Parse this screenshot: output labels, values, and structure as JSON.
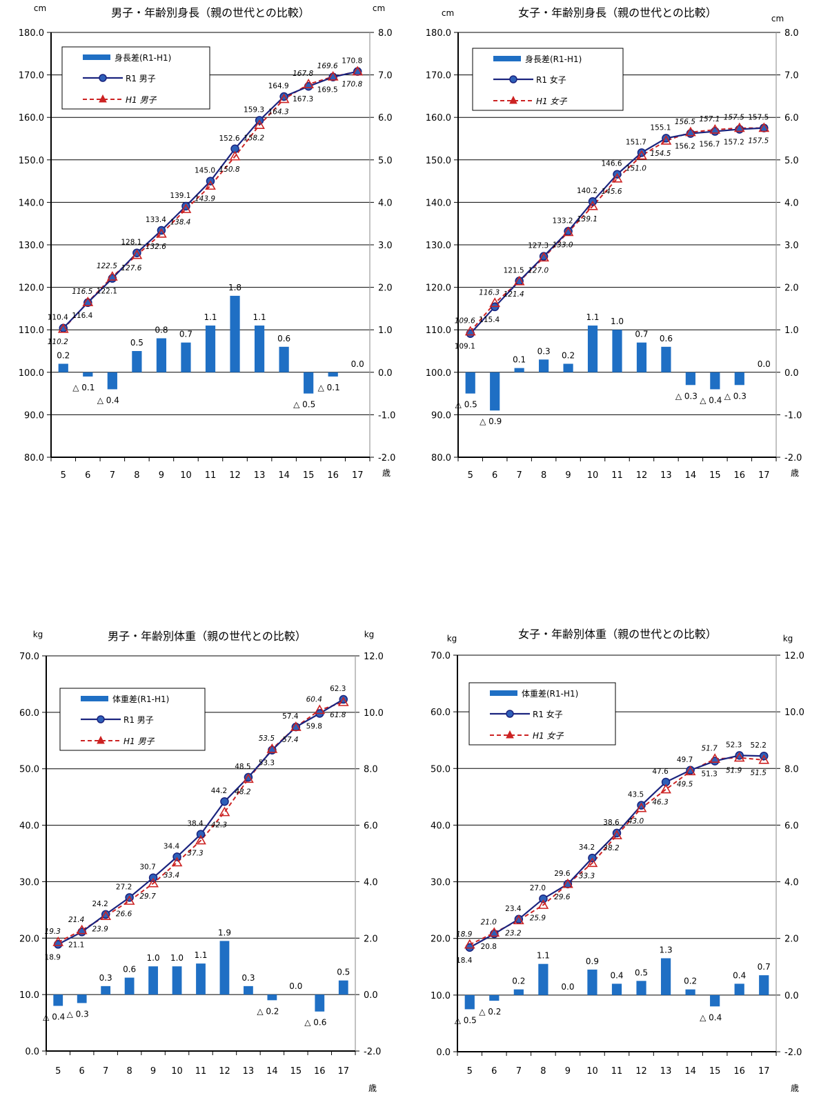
{
  "colors": {
    "bar": "#1f6fc4",
    "r1_line": "#1a237e",
    "r1_marker": "#2e5fb8",
    "h1_line": "#cc2222",
    "grid": "#000000",
    "axis_right": "#999999"
  },
  "chart_data": [
    {
      "type": "bar",
      "title": "男子・年齢別身長（親の世代との比較）",
      "unit_left": "cm",
      "unit_right": "cm",
      "xunit": "歳",
      "categories": [
        "5",
        "6",
        "7",
        "8",
        "9",
        "10",
        "11",
        "12",
        "13",
        "14",
        "15",
        "16",
        "17"
      ],
      "ylim": [
        80,
        180
      ],
      "yticks": [
        "80.0",
        "90.0",
        "100.0",
        "110.0",
        "120.0",
        "130.0",
        "140.0",
        "150.0",
        "160.0",
        "170.0",
        "180.0"
      ],
      "y2lim": [
        -2,
        8
      ],
      "y2ticks": [
        "-2.0",
        "-1.0",
        "0.0",
        "1.0",
        "2.0",
        "3.0",
        "4.0",
        "5.0",
        "6.0",
        "7.0",
        "8.0"
      ],
      "grid": true,
      "legend": "top-left",
      "series": [
        {
          "name": "身長差(R1-H1)",
          "type": "bar",
          "axis": "right",
          "values": [
            0.2,
            -0.1,
            -0.4,
            0.5,
            0.8,
            0.7,
            1.1,
            1.8,
            1.1,
            0.6,
            -0.5,
            -0.1,
            0.0
          ],
          "labels": [
            "0.2",
            "△ 0.1",
            "△ 0.4",
            "0.5",
            "0.8",
            "0.7",
            "1.1",
            "1.8",
            "1.1",
            "0.6",
            "△ 0.5",
            "△ 0.1",
            "0.0"
          ]
        },
        {
          "name": "R1 男子",
          "type": "line",
          "axis": "left",
          "values": [
            110.4,
            116.4,
            122.1,
            128.1,
            133.4,
            139.1,
            145.0,
            152.6,
            159.3,
            164.9,
            167.3,
            169.5,
            170.8
          ],
          "labels": [
            "110.4",
            "116.4",
            "122.1",
            "128.1",
            "133.4",
            "139.1",
            "145.0",
            "152.6",
            "159.3",
            "164.9",
            "167.3",
            "169.5",
            "170.8"
          ]
        },
        {
          "name": "H1 男子",
          "type": "line",
          "axis": "left",
          "values": [
            110.2,
            116.5,
            122.5,
            127.6,
            132.6,
            138.4,
            143.9,
            150.8,
            158.2,
            164.3,
            167.8,
            169.6,
            170.8
          ],
          "labels": [
            "110.2",
            "116.5",
            "122.5",
            "127.6",
            "132.6",
            "138.4",
            "143.9",
            "150.8",
            "158.2",
            "164.3",
            "167.8",
            "169.6",
            "170.8"
          ]
        }
      ]
    },
    {
      "type": "bar",
      "title": "女子・年齢別身長（親の世代との比較）",
      "unit_left": "cm",
      "unit_right": "cm",
      "xunit": "歳",
      "categories": [
        "5",
        "6",
        "7",
        "8",
        "9",
        "10",
        "11",
        "12",
        "13",
        "14",
        "15",
        "16",
        "17"
      ],
      "ylim": [
        80,
        180
      ],
      "yticks": [
        "80.0",
        "90.0",
        "100.0",
        "110.0",
        "120.0",
        "130.0",
        "140.0",
        "150.0",
        "160.0",
        "170.0",
        "180.0"
      ],
      "y2lim": [
        -2,
        8
      ],
      "y2ticks": [
        "-2.0",
        "-1.0",
        "0.0",
        "1.0",
        "2.0",
        "3.0",
        "4.0",
        "5.0",
        "6.0",
        "7.0",
        "8.0"
      ],
      "grid": true,
      "legend": "top-left",
      "series": [
        {
          "name": "身長差(R1-H1)",
          "type": "bar",
          "axis": "right",
          "values": [
            -0.5,
            -0.9,
            0.1,
            0.3,
            0.2,
            1.1,
            1.0,
            0.7,
            0.6,
            -0.3,
            -0.4,
            -0.3,
            0.0
          ],
          "labels": [
            "△ 0.5",
            "△ 0.9",
            "0.1",
            "0.3",
            "0.2",
            "1.1",
            "1.0",
            "0.7",
            "0.6",
            "△ 0.3",
            "△ 0.4",
            "△ 0.3",
            "0.0"
          ]
        },
        {
          "name": "R1 女子",
          "type": "line",
          "axis": "left",
          "values": [
            109.1,
            115.4,
            121.5,
            127.3,
            133.2,
            140.2,
            146.6,
            151.7,
            155.1,
            156.2,
            156.7,
            157.2,
            157.5
          ],
          "labels": [
            "109.1",
            "115.4",
            "121.5",
            "127.3",
            "133.2",
            "140.2",
            "146.6",
            "151.7",
            "155.1",
            "156.2",
            "156.7",
            "157.2",
            "157.5"
          ]
        },
        {
          "name": "H1 女子",
          "type": "line",
          "axis": "left",
          "values": [
            109.6,
            116.3,
            121.4,
            127.0,
            133.0,
            139.1,
            145.6,
            151.0,
            154.5,
            156.5,
            157.1,
            157.5,
            157.5
          ],
          "labels": [
            "109.6",
            "116.3",
            "121.4",
            "127.0",
            "133.0",
            "139.1",
            "145.6",
            "151.0",
            "154.5",
            "156.5",
            "157.1",
            "157.5",
            "157.5"
          ]
        }
      ]
    },
    {
      "type": "bar",
      "title": "男子・年齢別体重（親の世代との比較）",
      "unit_left": "kg",
      "unit_right": "kg",
      "xunit": "歳",
      "categories": [
        "5",
        "6",
        "7",
        "8",
        "9",
        "10",
        "11",
        "12",
        "13",
        "14",
        "15",
        "16",
        "17"
      ],
      "ylim": [
        0,
        70
      ],
      "yticks": [
        "0.0",
        "10.0",
        "20.0",
        "30.0",
        "40.0",
        "50.0",
        "60.0",
        "70.0"
      ],
      "y2lim": [
        -2,
        12
      ],
      "y2ticks": [
        "-2.0",
        "0.0",
        "2.0",
        "4.0",
        "6.0",
        "8.0",
        "10.0",
        "12.0"
      ],
      "grid": true,
      "legend": "top-left",
      "series": [
        {
          "name": "体重差(R1-H1)",
          "type": "bar",
          "axis": "right",
          "values": [
            -0.4,
            -0.3,
            0.3,
            0.6,
            1.0,
            1.0,
            1.1,
            1.9,
            0.3,
            -0.2,
            0.0,
            -0.6,
            0.5
          ],
          "labels": [
            "△ 0.4",
            "△ 0.3",
            "0.3",
            "0.6",
            "1.0",
            "1.0",
            "1.1",
            "1.9",
            "0.3",
            "△ 0.2",
            "0.0",
            "△ 0.6",
            "0.5"
          ]
        },
        {
          "name": "R1 男子",
          "type": "line",
          "axis": "left",
          "values": [
            18.9,
            21.1,
            24.2,
            27.2,
            30.7,
            34.4,
            38.4,
            44.2,
            48.5,
            53.3,
            57.4,
            59.8,
            62.3
          ],
          "labels": [
            "18.9",
            "21.1",
            "24.2",
            "27.2",
            "30.7",
            "34.4",
            "38.4",
            "44.2",
            "48.5",
            "53.3",
            "57.4",
            "59.8",
            "62.3"
          ]
        },
        {
          "name": "H1 男子",
          "type": "line",
          "axis": "left",
          "values": [
            19.3,
            21.4,
            23.9,
            26.6,
            29.7,
            33.4,
            37.3,
            42.3,
            48.2,
            53.5,
            57.4,
            60.4,
            61.8
          ],
          "labels": [
            "19.3",
            "21.4",
            "23.9",
            "26.6",
            "29.7",
            "33.4",
            "37.3",
            "42.3",
            "48.2",
            "53.5",
            "57.4",
            "60.4",
            "61.8"
          ]
        }
      ]
    },
    {
      "type": "bar",
      "title": "女子・年齢別体重（親の世代との比較）",
      "unit_left": "kg",
      "unit_right": "kg",
      "xunit": "歳",
      "categories": [
        "5",
        "6",
        "7",
        "8",
        "9",
        "10",
        "11",
        "12",
        "13",
        "14",
        "15",
        "16",
        "17"
      ],
      "ylim": [
        0,
        70
      ],
      "yticks": [
        "0.0",
        "10.0",
        "20.0",
        "30.0",
        "40.0",
        "50.0",
        "60.0",
        "70.0"
      ],
      "y2lim": [
        -2,
        12
      ],
      "y2ticks": [
        "-2.0",
        "0.0",
        "2.0",
        "4.0",
        "6.0",
        "8.0",
        "10.0",
        "12.0"
      ],
      "grid": true,
      "legend": "top-left",
      "series": [
        {
          "name": "体重差(R1-H1)",
          "type": "bar",
          "axis": "right",
          "values": [
            -0.5,
            -0.2,
            0.2,
            1.1,
            0.0,
            0.9,
            0.4,
            0.5,
            1.3,
            0.2,
            -0.4,
            0.4,
            0.7
          ],
          "labels": [
            "△ 0.5",
            "△ 0.2",
            "0.2",
            "1.1",
            "0.0",
            "0.9",
            "0.4",
            "0.5",
            "1.3",
            "0.2",
            "△ 0.4",
            "0.4",
            "0.7"
          ]
        },
        {
          "name": "R1 女子",
          "type": "line",
          "axis": "left",
          "values": [
            18.4,
            20.8,
            23.4,
            27.0,
            29.6,
            34.2,
            38.6,
            43.5,
            47.6,
            49.7,
            51.3,
            52.3,
            52.2
          ],
          "labels": [
            "18.4",
            "20.8",
            "23.4",
            "27.0",
            "29.6",
            "34.2",
            "38.6",
            "43.5",
            "47.6",
            "49.7",
            "51.3",
            "52.3",
            "52.2"
          ]
        },
        {
          "name": "H1 女子",
          "type": "line",
          "axis": "left",
          "values": [
            18.9,
            21.0,
            23.2,
            25.9,
            29.6,
            33.3,
            38.2,
            43.0,
            46.3,
            49.5,
            51.7,
            51.9,
            51.5
          ],
          "labels": [
            "18.9",
            "21.0",
            "23.2",
            "25.9",
            "29.6",
            "33.3",
            "38.2",
            "43.0",
            "46.3",
            "49.5",
            "51.7",
            "51.9",
            "51.5"
          ]
        }
      ]
    }
  ]
}
